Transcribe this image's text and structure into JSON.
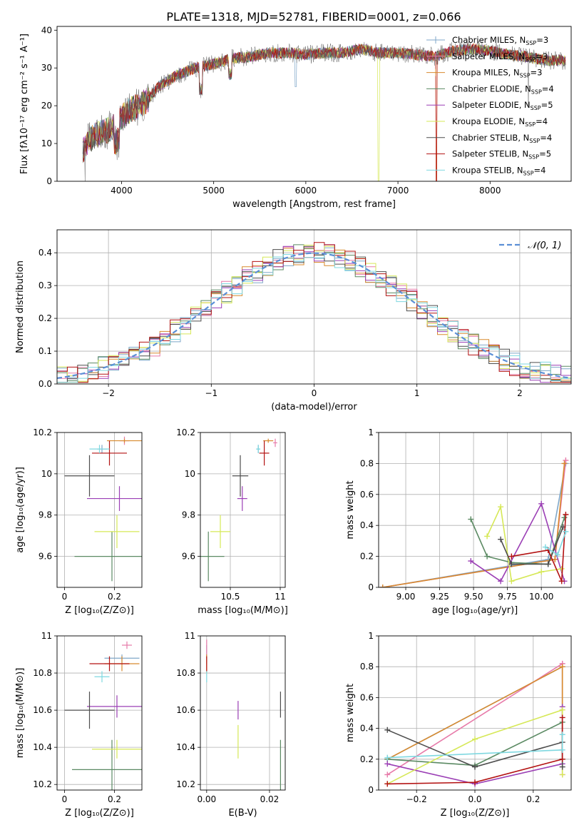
{
  "figure": {
    "title": "PLATE=1318, MJD=52781, FIBERID=0001, z=0.066"
  },
  "colors": {
    "Chabrier MILES": "#7fa7c9",
    "Salpeter MILES": "#e77aa9",
    "Kroupa MILES": "#d88a2e",
    "Chabrier ELODIE": "#5b8a63",
    "Salpeter ELODIE": "#9b3fb5",
    "Kroupa ELODIE": "#d6e857",
    "Chabrier STELIB": "#4d4d4d",
    "Salpeter STELIB": "#b31212",
    "Kroupa STELIB": "#7fd8e0",
    "gauss": "#5b8fd6",
    "grid": "#b0b0b0"
  },
  "chart_data": [
    {
      "id": "spectrum",
      "type": "line",
      "xlabel": "wavelength [Angstrom, rest frame]",
      "ylabel": "Flux [fλ10⁻¹⁷ erg cm⁻² s⁻¹ A⁻¹]",
      "xlim": [
        3300,
        8880
      ],
      "ylim": [
        0,
        41
      ],
      "xticks": [
        4000,
        5000,
        6000,
        7000,
        8000
      ],
      "yticks": [
        0,
        10,
        20,
        30,
        40
      ],
      "grid": false,
      "legend_position": "top-right",
      "continuum": {
        "x": [
          3580,
          3650,
          3700,
          3800,
          3900,
          4000,
          4100,
          4200,
          4300,
          4400,
          4600,
          4800,
          5000,
          5200,
          5400,
          5600,
          5800,
          6000,
          6200,
          6400,
          6600,
          6800,
          7000,
          7200,
          7400,
          7600,
          7800,
          8000,
          8200,
          8400,
          8600,
          8800
        ],
        "y": [
          8,
          11,
          12,
          13,
          14,
          17,
          19,
          20,
          22,
          25,
          28,
          30,
          31,
          32.5,
          33,
          34,
          34,
          33.5,
          34,
          34,
          35,
          34,
          34,
          33.5,
          33,
          34.5,
          35,
          34.5,
          33.5,
          33,
          32,
          32
        ]
      },
      "series": [
        {
          "name": "Chabrier MILES, N$_{SSP}$=3",
          "label_main": "Chabrier MILES, N",
          "label_sub": "SSP",
          "label_tail": "=3",
          "legend_style": "plus"
        },
        {
          "name": "Salpeter MILES, N$_{SSP}$=3",
          "label_main": "Salpeter MILES, N",
          "label_sub": "SSP",
          "label_tail": "=3",
          "legend_style": "plus"
        },
        {
          "name": "Kroupa MILES, N$_{SSP}$=3",
          "label_main": "Kroupa MILES, N",
          "label_sub": "SSP",
          "label_tail": "=3",
          "legend_style": "plus"
        },
        {
          "name": "Chabrier ELODIE, N$_{SSP}$=4",
          "label_main": "Chabrier ELODIE, N",
          "label_sub": "SSP",
          "label_tail": "=4",
          "legend_style": "line"
        },
        {
          "name": "Salpeter ELODIE, N$_{SSP}$=5",
          "label_main": "Salpeter ELODIE, N",
          "label_sub": "SSP",
          "label_tail": "=5",
          "legend_style": "line"
        },
        {
          "name": "Kroupa ELODIE, N$_{SSP}$=4",
          "label_main": "Kroupa ELODIE, N",
          "label_sub": "SSP",
          "label_tail": "=4",
          "legend_style": "line"
        },
        {
          "name": "Chabrier STELIB, N$_{SSP}$=4",
          "label_main": "Chabrier STELIB, N",
          "label_sub": "SSP",
          "label_tail": "=4",
          "legend_style": "line"
        },
        {
          "name": "Salpeter STELIB, N$_{SSP}$=5",
          "label_main": "Salpeter STELIB, N",
          "label_sub": "SSP",
          "label_tail": "=5",
          "legend_style": "line"
        },
        {
          "name": "Kroupa STELIB, N$_{SSP}$=4",
          "label_main": "Kroupa STELIB, N",
          "label_sub": "SSP",
          "label_tail": "=4",
          "legend_style": "line"
        }
      ]
    },
    {
      "id": "residuals",
      "type": "line",
      "xlabel": "(data-model)/error",
      "ylabel": "Normed distribution",
      "xlim": [
        -2.5,
        2.5
      ],
      "ylim": [
        0,
        0.47
      ],
      "xticks": [
        -2,
        -1,
        0,
        1,
        2
      ],
      "xtick_labels": [
        "−2",
        "−1",
        "0",
        "1",
        "2"
      ],
      "yticks": [
        0.0,
        0.1,
        0.2,
        0.3,
        0.4
      ],
      "ytick_labels": [
        "0.0",
        "0.1",
        "0.2",
        "0.3",
        "0.4"
      ],
      "grid": true,
      "legend_label": "𝒩(0, 1)",
      "legend_position": "top-right",
      "bin_width": 0.1,
      "gaussian": {
        "mean": 0,
        "sigma": 1
      }
    },
    {
      "id": "age-vs-Z",
      "type": "scatter",
      "xlabel": "Z [log₁₀(Z/Z⊙)]",
      "ylabel": "age  [log₁₀(age/yr)]",
      "xlim": [
        -0.03,
        0.31
      ],
      "ylim": [
        9.45,
        10.2
      ],
      "xticks": [
        0.0,
        0.2
      ],
      "yticks": [
        9.6,
        9.8,
        10.0,
        10.2
      ],
      "grid": true,
      "points": [
        {
          "series": "Chabrier MILES",
          "x": 0.15,
          "y": 10.12,
          "xerr": 0.02,
          "yerr": 0.02
        },
        {
          "series": "Salpeter MILES",
          "x": 0.24,
          "y": 10.16,
          "xerr": 0.02,
          "yerr": 0.02
        },
        {
          "series": "Kroupa MILES",
          "x": 0.24,
          "y": 10.16,
          "xerr": 0.07,
          "yerr": 0.01
        },
        {
          "series": "Chabrier ELODIE",
          "x": 0.19,
          "y": 9.6,
          "xerr": 0.15,
          "yerr": 0.12
        },
        {
          "series": "Salpeter ELODIE",
          "x": 0.22,
          "y": 9.88,
          "xerr": 0.13,
          "yerr": 0.06
        },
        {
          "series": "Kroupa ELODIE",
          "x": 0.21,
          "y": 9.72,
          "xerr": 0.09,
          "yerr": 0.08
        },
        {
          "series": "Chabrier STELIB",
          "x": 0.1,
          "y": 9.99,
          "xerr": 0.1,
          "yerr": 0.1
        },
        {
          "series": "Salpeter STELIB",
          "x": 0.18,
          "y": 10.1,
          "xerr": 0.07,
          "yerr": 0.06
        },
        {
          "series": "Kroupa STELIB",
          "x": 0.14,
          "y": 10.12,
          "xerr": 0.04,
          "yerr": 0.02
        }
      ]
    },
    {
      "id": "age-vs-mass",
      "type": "scatter",
      "xlabel": "mass [log₁₀(M/M⊙)]",
      "ylabel": "",
      "xlim": [
        10.2,
        11.05
      ],
      "ylim": [
        9.45,
        10.2
      ],
      "xticks": [
        10.5,
        11.0
      ],
      "yticks": [
        9.6,
        9.8,
        10.0,
        10.2
      ],
      "grid": true,
      "points": [
        {
          "series": "Chabrier MILES",
          "x": 10.78,
          "y": 10.12,
          "xerr": 0.02,
          "yerr": 0.02
        },
        {
          "series": "Salpeter MILES",
          "x": 10.95,
          "y": 10.15,
          "xerr": 0.02,
          "yerr": 0.02
        },
        {
          "series": "Kroupa MILES",
          "x": 10.88,
          "y": 10.16,
          "xerr": 0.05,
          "yerr": 0.01
        },
        {
          "series": "Chabrier ELODIE",
          "x": 10.28,
          "y": 9.6,
          "xerr": 0.16,
          "yerr": 0.12
        },
        {
          "series": "Salpeter ELODIE",
          "x": 10.62,
          "y": 9.88,
          "xerr": 0.05,
          "yerr": 0.06
        },
        {
          "series": "Kroupa ELODIE",
          "x": 10.4,
          "y": 9.72,
          "xerr": 0.1,
          "yerr": 0.08
        },
        {
          "series": "Chabrier STELIB",
          "x": 10.6,
          "y": 9.99,
          "xerr": 0.08,
          "yerr": 0.1
        },
        {
          "series": "Salpeter STELIB",
          "x": 10.84,
          "y": 10.1,
          "xerr": 0.05,
          "yerr": 0.06
        },
        {
          "series": "Kroupa STELIB",
          "x": 10.78,
          "y": 10.12,
          "xerr": 0.02,
          "yerr": 0.02
        }
      ]
    },
    {
      "id": "weight-vs-age",
      "type": "line",
      "xlabel": "age  [log₁₀(age/yr)]",
      "ylabel": "mass weight",
      "xlim": [
        8.8,
        10.22
      ],
      "ylim": [
        0,
        1.0
      ],
      "xticks": [
        9.0,
        9.25,
        9.5,
        9.75,
        10.0
      ],
      "xtick_labels": [
        "9.00",
        "9.25",
        "9.50",
        "9.75",
        "10.00"
      ],
      "yticks": [
        0.0,
        0.2,
        0.4,
        0.6,
        0.8,
        1.0
      ],
      "grid": true,
      "series": [
        {
          "series": "Chabrier MILES",
          "x": [
            8.83,
            10.05,
            10.18
          ],
          "y": [
            0.0,
            0.18,
            0.8
          ]
        },
        {
          "series": "Salpeter MILES",
          "x": [
            8.83,
            10.1,
            10.18
          ],
          "y": [
            0.0,
            0.18,
            0.82
          ]
        },
        {
          "series": "Kroupa MILES",
          "x": [
            8.83,
            10.1,
            10.17
          ],
          "y": [
            0.0,
            0.18,
            0.8
          ]
        },
        {
          "series": "Chabrier ELODIE",
          "x": [
            9.48,
            9.6,
            9.78,
            10.05,
            10.17
          ],
          "y": [
            0.44,
            0.2,
            0.16,
            0.15,
            0.45
          ]
        },
        {
          "series": "Salpeter ELODIE",
          "x": [
            9.48,
            9.7,
            10.0,
            10.17
          ],
          "y": [
            0.17,
            0.04,
            0.54,
            0.04
          ]
        },
        {
          "series": "Kroupa ELODIE",
          "x": [
            9.6,
            9.7,
            9.78,
            10.0,
            10.15
          ],
          "y": [
            0.33,
            0.52,
            0.04,
            0.1,
            0.12
          ]
        },
        {
          "series": "Chabrier STELIB",
          "x": [
            9.7,
            9.78,
            10.05,
            10.16
          ],
          "y": [
            0.31,
            0.15,
            0.15,
            0.39
          ]
        },
        {
          "series": "Salpeter STELIB",
          "x": [
            9.78,
            10.05,
            10.15,
            10.18
          ],
          "y": [
            0.2,
            0.24,
            0.04,
            0.47
          ]
        },
        {
          "series": "Kroupa STELIB",
          "x": [
            10.03,
            10.12,
            10.18
          ],
          "y": [
            0.26,
            0.21,
            0.36
          ]
        }
      ]
    },
    {
      "id": "mass-vs-Z",
      "type": "scatter",
      "xlabel": "Z [log₁₀(Z/Z⊙)]",
      "ylabel": "mass [log₁₀(M/M⊙)]",
      "xlim": [
        -0.03,
        0.31
      ],
      "ylim": [
        10.17,
        11.0
      ],
      "xticks": [
        0.0,
        0.2
      ],
      "yticks": [
        10.2,
        10.4,
        10.6,
        10.8,
        11.0
      ],
      "grid": true,
      "points": [
        {
          "series": "Chabrier MILES",
          "x": 0.23,
          "y": 10.88,
          "xerr": 0.07,
          "yerr": 0.02
        },
        {
          "series": "Salpeter MILES",
          "x": 0.25,
          "y": 10.95,
          "xerr": 0.02,
          "yerr": 0.02
        },
        {
          "series": "Kroupa MILES",
          "x": 0.23,
          "y": 10.85,
          "xerr": 0.07,
          "yerr": 0.04
        },
        {
          "series": "Chabrier ELODIE",
          "x": 0.19,
          "y": 10.28,
          "xerr": 0.16,
          "yerr": 0.16
        },
        {
          "series": "Salpeter ELODIE",
          "x": 0.21,
          "y": 10.62,
          "xerr": 0.12,
          "yerr": 0.06
        },
        {
          "series": "Kroupa ELODIE",
          "x": 0.21,
          "y": 10.39,
          "xerr": 0.1,
          "yerr": 0.05
        },
        {
          "series": "Chabrier STELIB",
          "x": 0.1,
          "y": 10.6,
          "xerr": 0.1,
          "yerr": 0.1
        },
        {
          "series": "Salpeter STELIB",
          "x": 0.18,
          "y": 10.85,
          "xerr": 0.08,
          "yerr": 0.04
        },
        {
          "series": "Kroupa STELIB",
          "x": 0.15,
          "y": 10.78,
          "xerr": 0.03,
          "yerr": 0.03
        }
      ]
    },
    {
      "id": "mass-vs-EBV",
      "type": "scatter",
      "xlabel": "E(B-V)",
      "ylabel": "",
      "xlim": [
        -0.002,
        0.025
      ],
      "ylim": [
        10.17,
        11.0
      ],
      "xticks": [
        0.0,
        0.02
      ],
      "xtick_labels": [
        "0.00",
        "0.02"
      ],
      "yticks": [
        10.2,
        10.4,
        10.6,
        10.8,
        11.0
      ],
      "grid": true,
      "points": [
        {
          "series": "Chabrier MILES",
          "x": 0.0,
          "y": 10.9,
          "xerr": 0.0,
          "yerr": 0.05
        },
        {
          "series": "Salpeter MILES",
          "x": 0.0,
          "y": 10.93,
          "xerr": 0.0,
          "yerr": 0.05
        },
        {
          "series": "Kroupa MILES",
          "x": 0.0,
          "y": 10.85,
          "xerr": 0.0,
          "yerr": 0.05
        },
        {
          "series": "Chabrier ELODIE",
          "x": 0.0235,
          "y": 10.28,
          "xerr": 0.0,
          "yerr": 0.16
        },
        {
          "series": "Salpeter ELODIE",
          "x": 0.01,
          "y": 10.6,
          "xerr": 0.0,
          "yerr": 0.05
        },
        {
          "series": "Kroupa ELODIE",
          "x": 0.01,
          "y": 10.43,
          "xerr": 0.0,
          "yerr": 0.09
        },
        {
          "series": "Chabrier STELIB",
          "x": 0.0235,
          "y": 10.63,
          "xerr": 0.0,
          "yerr": 0.07
        },
        {
          "series": "Salpeter STELIB",
          "x": 0.0,
          "y": 10.85,
          "xerr": 0.0,
          "yerr": 0.04
        },
        {
          "series": "Kroupa STELIB",
          "x": 0.0,
          "y": 10.78,
          "xerr": 0.0,
          "yerr": 0.03
        }
      ]
    },
    {
      "id": "weight-vs-Z",
      "type": "line",
      "xlabel": "Z [log₁₀(Z/Z⊙)]",
      "ylabel": "mass weight",
      "xlim": [
        -0.33,
        0.33
      ],
      "ylim": [
        0,
        1.0
      ],
      "xticks": [
        -0.2,
        0.0,
        0.2
      ],
      "xtick_labels": [
        "−0.2",
        "0.0",
        "0.2"
      ],
      "yticks": [
        0.0,
        0.2,
        0.4,
        0.6,
        0.8,
        1.0
      ],
      "grid": true,
      "series": [
        {
          "series": "Chabrier MILES",
          "x": [
            -0.3,
            0.3,
            0.3
          ],
          "y": [
            0.2,
            0.8,
            0.2
          ]
        },
        {
          "series": "Salpeter MILES",
          "x": [
            -0.3,
            0.3,
            0.3
          ],
          "y": [
            0.1,
            0.82,
            0.1
          ]
        },
        {
          "series": "Kroupa MILES",
          "x": [
            -0.3,
            0.3,
            0.3
          ],
          "y": [
            0.2,
            0.8,
            0.2
          ]
        },
        {
          "series": "Chabrier ELODIE",
          "x": [
            -0.3,
            0.0,
            0.3,
            0.3
          ],
          "y": [
            0.2,
            0.16,
            0.44,
            0.2
          ]
        },
        {
          "series": "Salpeter ELODIE",
          "x": [
            -0.3,
            0.0,
            0.3,
            0.3
          ],
          "y": [
            0.17,
            0.04,
            0.17,
            0.54
          ]
        },
        {
          "series": "Kroupa ELODIE",
          "x": [
            -0.3,
            0.0,
            0.3,
            0.3
          ],
          "y": [
            0.04,
            0.33,
            0.52,
            0.1
          ]
        },
        {
          "series": "Chabrier STELIB",
          "x": [
            -0.3,
            0.0,
            0.3,
            0.3
          ],
          "y": [
            0.39,
            0.15,
            0.31,
            0.15
          ]
        },
        {
          "series": "Salpeter STELIB",
          "x": [
            -0.3,
            0.0,
            0.3,
            0.3
          ],
          "y": [
            0.04,
            0.05,
            0.2,
            0.47
          ]
        },
        {
          "series": "Kroupa STELIB",
          "x": [
            -0.3,
            0.3,
            0.3
          ],
          "y": [
            0.21,
            0.26,
            0.36
          ]
        }
      ]
    }
  ]
}
